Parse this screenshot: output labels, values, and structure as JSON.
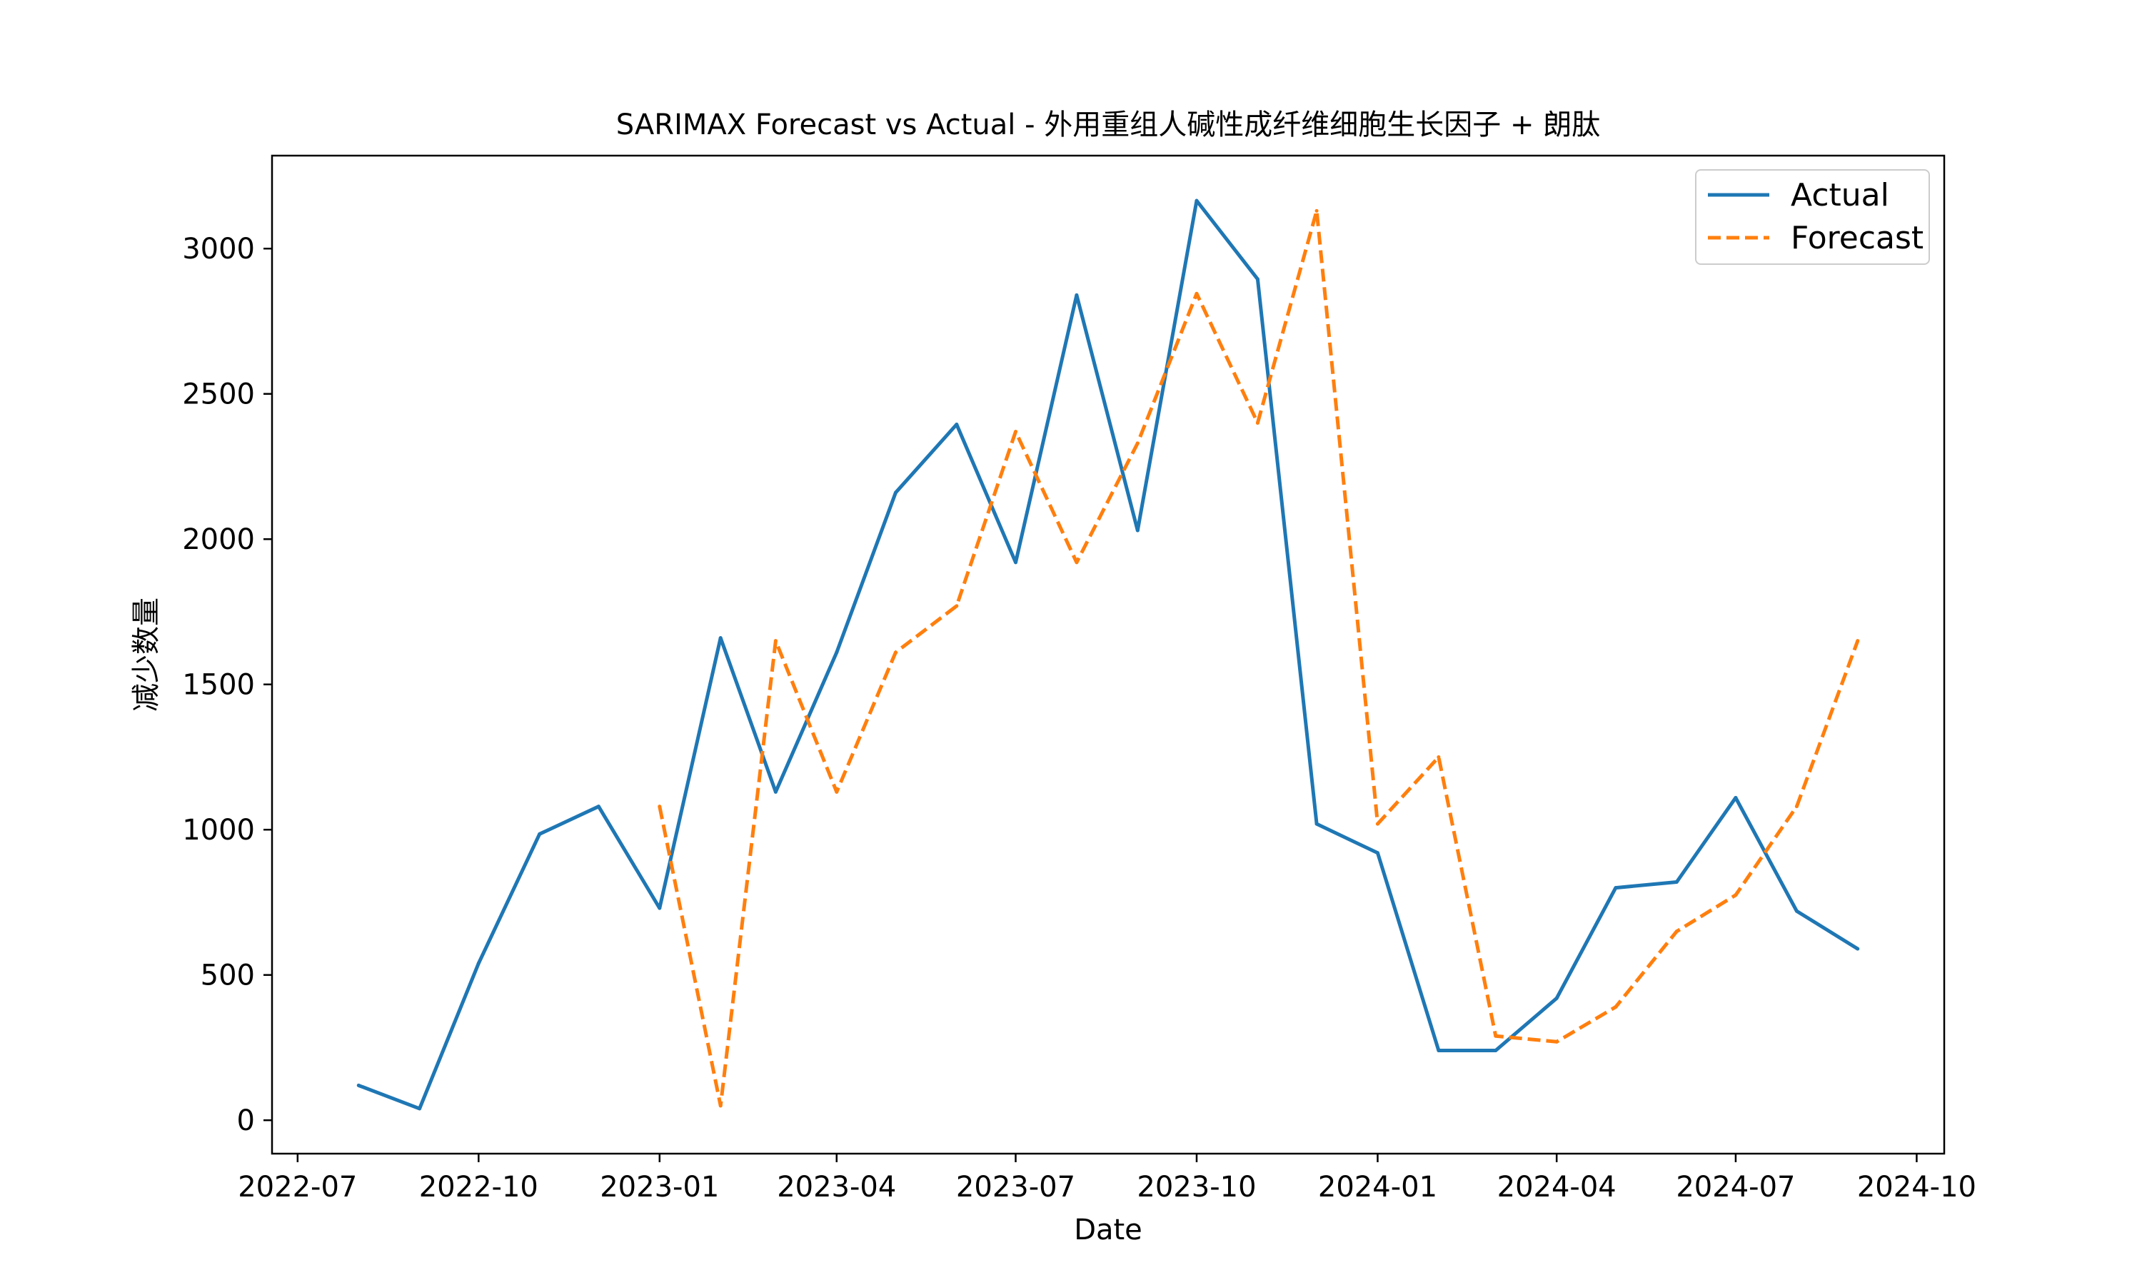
{
  "chart_data": {
    "type": "line",
    "title": "SARIMAX Forecast vs Actual - 外用重组人碱性成纤维细胞生长因子 + 朗肽",
    "xlabel": "Date",
    "ylabel": "减少数量",
    "xlim": [
      "2022-06-18",
      "2024-10-15"
    ],
    "ylim": [
      -115,
      3320
    ],
    "x_ticks": [
      "2022-07-01",
      "2022-10-01",
      "2023-01-01",
      "2023-04-01",
      "2023-07-01",
      "2023-10-01",
      "2024-01-01",
      "2024-04-01",
      "2024-07-01",
      "2024-10-01"
    ],
    "x_tick_labels": [
      "2022-07",
      "2022-10",
      "2023-01",
      "2023-04",
      "2023-07",
      "2023-10",
      "2024-01",
      "2024-04",
      "2024-07",
      "2024-10"
    ],
    "y_ticks": [
      0,
      500,
      1000,
      1500,
      2000,
      2500,
      3000
    ],
    "grid": false,
    "legend_position": "top-right",
    "series": [
      {
        "name": "Actual",
        "color": "#1f77b4",
        "style": "solid",
        "x": [
          "2022-08-01",
          "2022-09-01",
          "2022-10-01",
          "2022-11-01",
          "2022-12-01",
          "2023-01-01",
          "2023-02-01",
          "2023-03-01",
          "2023-04-01",
          "2023-05-01",
          "2023-06-01",
          "2023-07-01",
          "2023-08-01",
          "2023-09-01",
          "2023-10-01",
          "2023-11-01",
          "2023-12-01",
          "2024-01-01",
          "2024-02-01",
          "2024-03-01",
          "2024-04-01",
          "2024-05-01",
          "2024-06-01",
          "2024-07-01",
          "2024-08-01",
          "2024-09-01"
        ],
        "y": [
          120,
          40,
          540,
          985,
          1080,
          730,
          1660,
          1130,
          1610,
          2160,
          2395,
          1920,
          2840,
          2030,
          3165,
          2895,
          1020,
          920,
          240,
          240,
          420,
          800,
          820,
          1110,
          720,
          590
        ]
      },
      {
        "name": "Forecast",
        "color": "#ff7f0e",
        "style": "dashed",
        "x": [
          "2023-01-01",
          "2023-02-01",
          "2023-03-01",
          "2023-04-01",
          "2023-05-01",
          "2023-06-01",
          "2023-07-01",
          "2023-08-01",
          "2023-09-01",
          "2023-10-01",
          "2023-11-01",
          "2023-12-01",
          "2024-01-01",
          "2024-02-01",
          "2024-03-01",
          "2024-04-01",
          "2024-05-01",
          "2024-06-01",
          "2024-07-01",
          "2024-08-01",
          "2024-09-01"
        ],
        "y": [
          1080,
          50,
          1650,
          1130,
          1610,
          1770,
          2370,
          1920,
          2330,
          2845,
          2400,
          3130,
          1020,
          1250,
          290,
          270,
          390,
          650,
          775,
          1080,
          1650
        ]
      }
    ]
  }
}
